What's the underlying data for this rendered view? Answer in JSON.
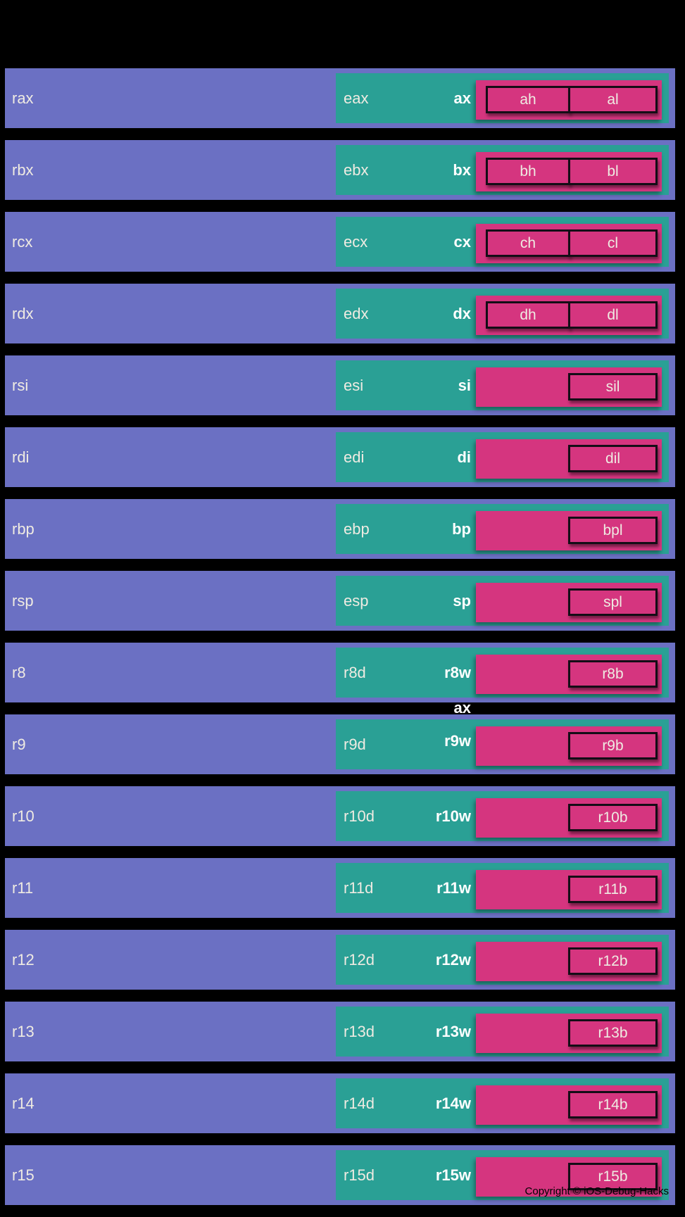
{
  "colors": {
    "background": "#000000",
    "register64_fill": "#6b70c3",
    "register32_fill": "#2aa095",
    "register16_fill": "#d5357f",
    "byte_box_border": "#140d16",
    "label_text": "#efebe2",
    "bold_label_text": "#ffffff",
    "copyright_text": "#000000"
  },
  "rows": [
    {
      "reg64": "rax",
      "reg32": "eax",
      "word": "ax",
      "high": "ah",
      "low": "al"
    },
    {
      "reg64": "rbx",
      "reg32": "ebx",
      "word": "bx",
      "high": "bh",
      "low": "bl"
    },
    {
      "reg64": "rcx",
      "reg32": "ecx",
      "word": "cx",
      "high": "ch",
      "low": "cl"
    },
    {
      "reg64": "rdx",
      "reg32": "edx",
      "word": "dx",
      "high": "dh",
      "low": "dl"
    },
    {
      "reg64": "rsi",
      "reg32": "esi",
      "word": "si",
      "high": null,
      "low": "sil"
    },
    {
      "reg64": "rdi",
      "reg32": "edi",
      "word": "di",
      "high": null,
      "low": "dil"
    },
    {
      "reg64": "rbp",
      "reg32": "ebp",
      "word": "bp",
      "high": null,
      "low": "bpl"
    },
    {
      "reg64": "rsp",
      "reg32": "esp",
      "word": "sp",
      "high": null,
      "low": "spl"
    },
    {
      "reg64": "r8",
      "reg32": "r8d",
      "word": "r8w",
      "high": null,
      "low": "r8b"
    },
    {
      "reg64": "r9",
      "reg32": "r9d",
      "word": "r9w",
      "high": null,
      "low": "r9b"
    },
    {
      "reg64": "r10",
      "reg32": "r10d",
      "word": "r10w",
      "high": null,
      "low": "r10b"
    },
    {
      "reg64": "r11",
      "reg32": "r11d",
      "word": "r11w",
      "high": null,
      "low": "r11b"
    },
    {
      "reg64": "r12",
      "reg32": "r12d",
      "word": "r12w",
      "high": null,
      "low": "r12b"
    },
    {
      "reg64": "r13",
      "reg32": "r13d",
      "word": "r13w",
      "high": null,
      "low": "r13b"
    },
    {
      "reg64": "r14",
      "reg32": "r14d",
      "word": "r14w",
      "high": null,
      "low": "r14b"
    },
    {
      "reg64": "r15",
      "reg32": "r15d",
      "word": "r15w",
      "high": null,
      "low": "r15b"
    }
  ],
  "stray_label": "ax",
  "footer": {
    "copyright": "Copyright © iOS-Debug-Hacks"
  }
}
